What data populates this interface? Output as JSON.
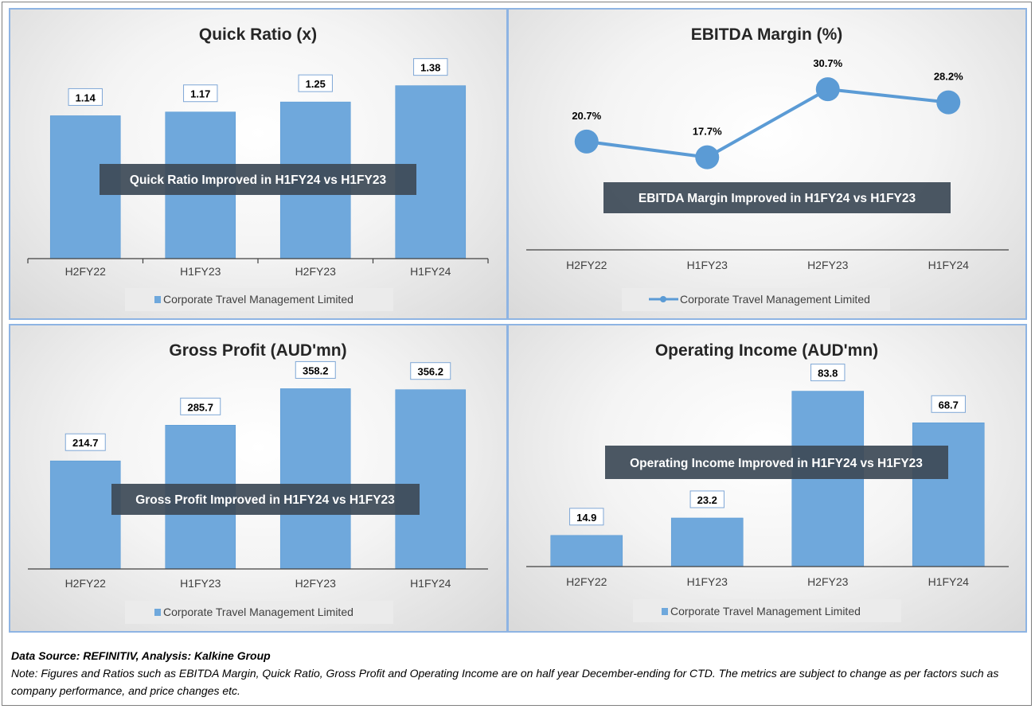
{
  "footer": {
    "source": "Data Source: REFINITIV, Analysis: Kalkine Group",
    "note": "Note: Figures and Ratios such as EBITDA Margin, Quick Ratio, Gross Profit and Operating Income are on half year December-ending for CTD. The metrics are subject to change as per factors such as company performance, and price changes etc."
  },
  "colors": {
    "bar": "#6fa8dc",
    "bar_edge": "#5b9bd5",
    "annotation": "#3d4a57"
  },
  "chart_data": [
    {
      "id": "quick-ratio",
      "type": "bar",
      "title": "Quick Ratio (x)",
      "categories": [
        "H2FY22",
        "H1FY23",
        "H2FY23",
        "H1FY24"
      ],
      "values": [
        1.14,
        1.17,
        1.25,
        1.38
      ],
      "labels": [
        "1.14",
        "1.17",
        "1.25",
        "1.38"
      ],
      "ylim": [
        0,
        1.6
      ],
      "annotation": "Quick Ratio Improved in H1FY24 vs H1FY23",
      "legend": "Corporate Travel Management Limited",
      "legend_position": "bottom",
      "grid": false
    },
    {
      "id": "ebitda-margin",
      "type": "line",
      "title": "EBITDA Margin (%)",
      "categories": [
        "H2FY22",
        "H1FY23",
        "H2FY23",
        "H1FY24"
      ],
      "values": [
        20.7,
        17.7,
        30.7,
        28.2
      ],
      "labels": [
        "20.7%",
        "17.7%",
        "30.7%",
        "28.2%"
      ],
      "ylim": [
        0,
        40
      ],
      "annotation": "EBITDA Margin Improved in H1FY24 vs H1FY23",
      "legend": "Corporate Travel Management Limited",
      "legend_position": "bottom",
      "grid": false
    },
    {
      "id": "gross-profit",
      "type": "bar",
      "title": "Gross Profit (AUD'mn)",
      "categories": [
        "H2FY22",
        "H1FY23",
        "H2FY23",
        "H1FY24"
      ],
      "values": [
        214.7,
        285.7,
        358.2,
        356.2
      ],
      "labels": [
        "214.7",
        "285.7",
        "358.2",
        "356.2"
      ],
      "ylim": [
        0,
        400
      ],
      "annotation": "Gross Profit Improved in H1FY24 vs H1FY23",
      "legend": "Corporate Travel Management Limited",
      "legend_position": "bottom",
      "grid": false
    },
    {
      "id": "operating-income",
      "type": "bar",
      "title": "Operating Income (AUD'mn)",
      "categories": [
        "H2FY22",
        "H1FY23",
        "H2FY23",
        "H1FY24"
      ],
      "values": [
        14.9,
        23.2,
        83.8,
        68.7
      ],
      "labels": [
        "14.9",
        "23.2",
        "83.8",
        "68.7"
      ],
      "ylim": [
        0,
        92
      ],
      "annotation": "Operating Income Improved in H1FY24 vs H1FY23",
      "legend": "Corporate Travel Management Limited",
      "legend_position": "bottom",
      "grid": false
    }
  ]
}
